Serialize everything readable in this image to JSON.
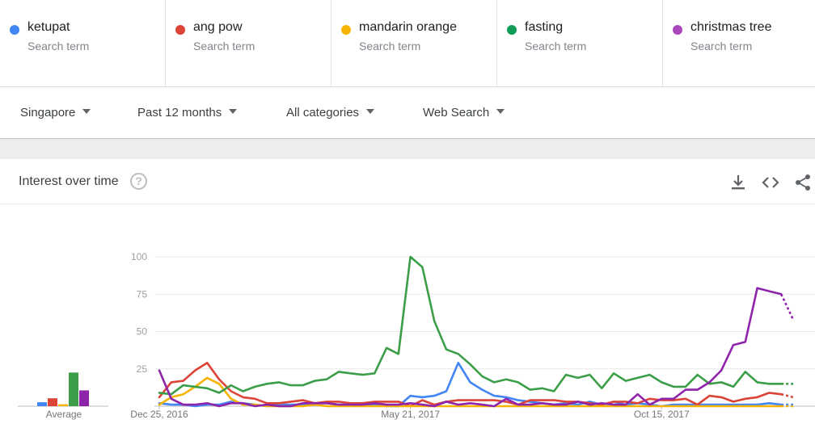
{
  "terms": [
    {
      "name": "ketupat",
      "subtitle": "Search term",
      "color": "#4285f4"
    },
    {
      "name": "ang pow",
      "subtitle": "Search term",
      "color": "#db4437"
    },
    {
      "name": "mandarin orange",
      "subtitle": "Search term",
      "color": "#f4b400"
    },
    {
      "name": "fasting",
      "subtitle": "Search term",
      "color": "#0f9d58"
    },
    {
      "name": "christmas tree",
      "subtitle": "Search term",
      "color": "#ab47bc"
    }
  ],
  "filters": {
    "region": "Singapore",
    "time": "Past 12 months",
    "category": "All categories",
    "search_type": "Web Search"
  },
  "card": {
    "title": "Interest over time",
    "help_icon": "help-circle-icon",
    "download_icon": "download-icon",
    "embed_icon": "embed-code-icon",
    "share_icon": "share-icon"
  },
  "chart_data": [
    {
      "type": "bar",
      "xlabel": "Average",
      "categories": [
        "ketupat",
        "ang pow",
        "mandarin orange",
        "fasting",
        "christmas tree"
      ],
      "values": [
        2,
        4,
        1,
        17,
        8
      ],
      "colors": [
        "#4285f4",
        "#db4437",
        "#f4b400",
        "#3c9e48",
        "#8e24aa"
      ]
    },
    {
      "type": "line",
      "ylim": [
        0,
        100
      ],
      "yticks": [
        "100",
        "75",
        "50",
        "25"
      ],
      "ytick_values": [
        100,
        75,
        50,
        25
      ],
      "xticks": [
        {
          "label": "Dec 25, 2016",
          "index": 0
        },
        {
          "label": "May 21, 2017",
          "index": 21
        },
        {
          "label": "Oct 15, 2017",
          "index": 42
        }
      ],
      "partial_last_point": true,
      "series": [
        {
          "name": "ketupat",
          "color": "#4285f4",
          "values": [
            2,
            1,
            1,
            0,
            1,
            1,
            3,
            2,
            1,
            0,
            1,
            1,
            1,
            2,
            2,
            1,
            1,
            1,
            1,
            0,
            0,
            7,
            6,
            7,
            10,
            29,
            16,
            11,
            7,
            6,
            4,
            3,
            2,
            1,
            2,
            1,
            3,
            1,
            3,
            1,
            2,
            1,
            0,
            1,
            1,
            1,
            1,
            1,
            1,
            1,
            1,
            2,
            1,
            1
          ]
        },
        {
          "name": "ang pow",
          "color": "#db4437",
          "values": [
            6,
            16,
            17,
            24,
            29,
            18,
            10,
            6,
            5,
            2,
            2,
            3,
            4,
            2,
            3,
            3,
            2,
            2,
            3,
            3,
            3,
            0,
            4,
            1,
            3,
            4,
            4,
            4,
            4,
            3,
            1,
            4,
            4,
            4,
            3,
            3,
            2,
            1,
            3,
            3,
            2,
            5,
            4,
            4,
            5,
            1,
            7,
            6,
            3,
            5,
            6,
            9,
            8,
            6
          ]
        },
        {
          "name": "mandarin orange",
          "color": "#f4b400",
          "values": [
            1,
            6,
            8,
            13,
            19,
            15,
            5,
            1,
            1,
            0,
            0,
            0,
            0,
            1,
            0,
            0,
            0,
            0,
            0,
            0,
            0,
            0,
            0,
            0,
            0,
            0,
            0,
            0,
            0,
            0,
            0,
            0,
            0,
            0,
            0,
            0,
            0,
            0,
            0,
            0,
            0,
            0,
            0,
            0,
            0,
            0,
            0,
            0,
            0,
            0,
            0,
            0,
            0,
            0
          ]
        },
        {
          "name": "fasting",
          "color": "#3c9e48",
          "values": [
            9,
            8,
            14,
            13,
            12,
            9,
            14,
            10,
            13,
            15,
            16,
            14,
            14,
            17,
            18,
            23,
            22,
            21,
            22,
            39,
            35,
            100,
            93,
            57,
            38,
            35,
            28,
            20,
            16,
            18,
            16,
            11,
            12,
            10,
            21,
            19,
            21,
            12,
            22,
            17,
            19,
            21,
            16,
            13,
            13,
            21,
            15,
            16,
            13,
            23,
            16,
            15,
            15,
            15
          ]
        },
        {
          "name": "christmas tree",
          "color": "#8e24aa",
          "values": [
            24,
            5,
            1,
            1,
            2,
            0,
            2,
            2,
            0,
            1,
            0,
            0,
            2,
            2,
            2,
            1,
            1,
            1,
            2,
            1,
            1,
            2,
            1,
            0,
            3,
            1,
            2,
            1,
            0,
            5,
            1,
            1,
            2,
            1,
            1,
            3,
            1,
            2,
            1,
            1,
            8,
            1,
            5,
            5,
            11,
            11,
            16,
            24,
            41,
            43,
            79,
            77,
            75,
            58
          ]
        }
      ]
    }
  ]
}
